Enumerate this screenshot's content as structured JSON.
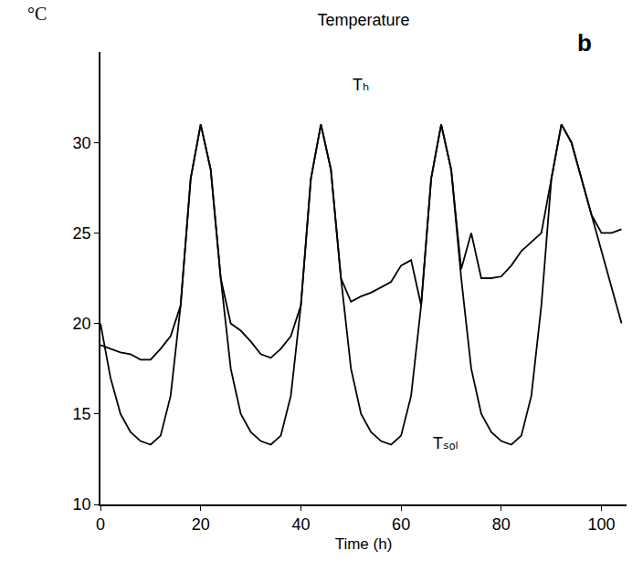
{
  "chart_data": {
    "type": "line",
    "title": "Temperature",
    "y_label": "°C",
    "x_label": "Time (h)",
    "panel": "b",
    "x": [
      0,
      2,
      4,
      6,
      8,
      10,
      12,
      14,
      16,
      18,
      20,
      22,
      24,
      26,
      28,
      30,
      32,
      34,
      36,
      38,
      40,
      42,
      44,
      46,
      48,
      50,
      52,
      54,
      56,
      58,
      60,
      62,
      64,
      66,
      68,
      70,
      72,
      74,
      76,
      78,
      80,
      82,
      84,
      86,
      88,
      90,
      92,
      94,
      96,
      98,
      100,
      102,
      104
    ],
    "series": [
      {
        "name": "Tₕ",
        "color": "#000000",
        "line_style": "solid",
        "values": [
          18.8,
          18.6,
          18.4,
          18.3,
          18.0,
          18.0,
          18.6,
          19.3,
          21,
          28,
          31,
          28.5,
          22.5,
          20,
          19.6,
          19,
          18.3,
          18.1,
          18.6,
          19.3,
          21,
          28,
          31,
          28.5,
          22.5,
          21.2,
          21.5,
          21.7,
          22,
          22.3,
          23.2,
          23.5,
          21,
          28,
          31,
          28.5,
          23,
          25,
          22.5,
          22.5,
          22.6,
          23.2,
          24,
          24.5,
          25,
          28,
          31,
          30,
          28,
          26,
          25,
          25,
          25.2
        ]
      },
      {
        "name": "Tₛₒₗ",
        "color": "#000000",
        "line_style": "solid",
        "values": [
          20,
          17,
          15,
          14,
          13.5,
          13.3,
          13.8,
          16,
          21,
          28,
          31,
          28.5,
          22.5,
          17.5,
          15,
          14,
          13.5,
          13.3,
          13.8,
          16,
          21,
          28,
          31,
          28.5,
          22.5,
          17.5,
          15,
          14,
          13.5,
          13.3,
          13.8,
          16,
          21,
          28,
          31,
          28.5,
          22.5,
          17.5,
          15,
          14,
          13.5,
          13.3,
          13.8,
          16,
          21,
          28,
          31,
          30,
          28,
          26,
          24,
          22,
          20
        ]
      }
    ],
    "annotations": [
      {
        "text": "Tₕ",
        "x": 50,
        "y": 33.2
      },
      {
        "text": "Tₛₒₗ",
        "x": 66,
        "y": 13.4
      }
    ],
    "xlim": [
      0,
      105
    ],
    "xticks": [
      0,
      20,
      40,
      60,
      80,
      100
    ],
    "ylim": [
      10,
      35
    ],
    "yticks": [
      10,
      15,
      20,
      25,
      30
    ],
    "grid": false
  }
}
